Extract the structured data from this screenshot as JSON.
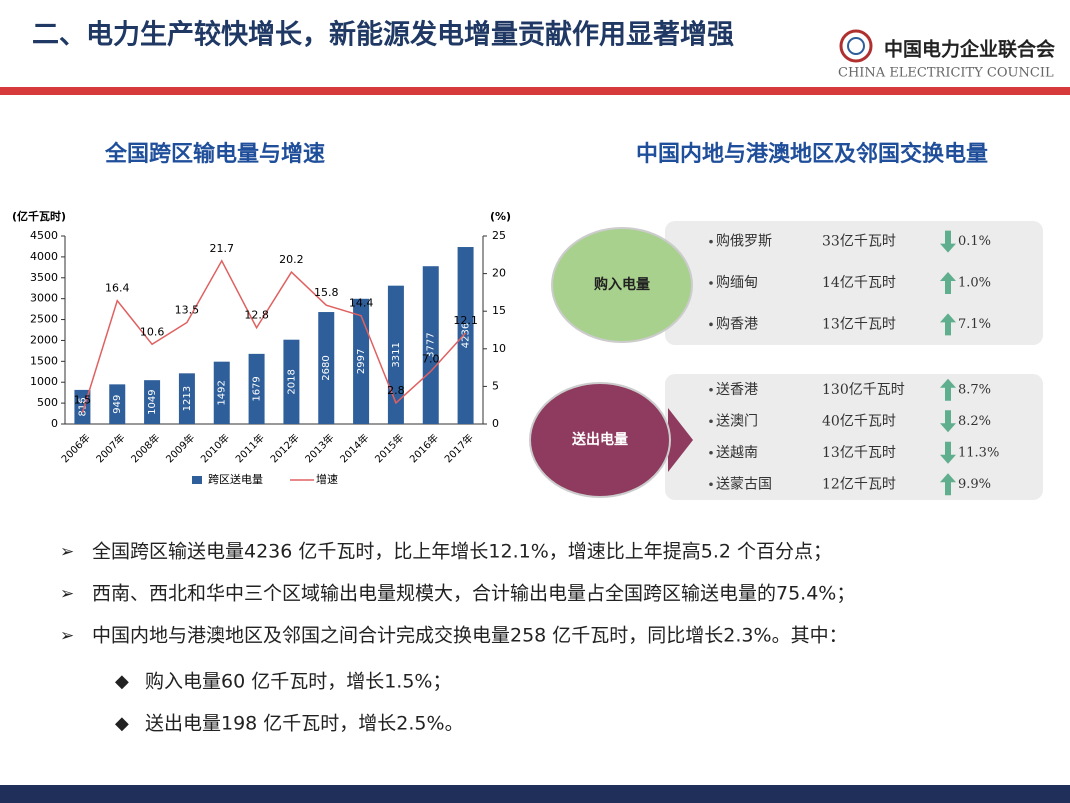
{
  "header": {
    "title": "二、电力生产较快增长，新能源发电增量贡献作用显著增强",
    "org_name": "中国电力企业联合会",
    "org_name_en": "CHINA ELECTRICITY COUNCIL"
  },
  "left_title": "全国跨区输电量与增速",
  "right_title": "中国内地与港澳地区及邻国交换电量",
  "chart_data": {
    "type": "bar",
    "y_label": "(亿千瓦时)",
    "y2_label": "(%)",
    "categories": [
      "2006年",
      "2007年",
      "2008年",
      "2009年",
      "2010年",
      "2011年",
      "2012年",
      "2013年",
      "2014年",
      "2015年",
      "2016年",
      "2017年"
    ],
    "series": [
      {
        "name": "跨区送电量",
        "type": "bar",
        "color": "#2f5f9a",
        "values": [
          816,
          949,
          1049,
          1213,
          1492,
          1679,
          2018,
          2680,
          2997,
          3311,
          3777,
          4236
        ]
      },
      {
        "name": "增速",
        "type": "line",
        "axis": "y2",
        "color": "#e06060",
        "values": [
          1.5,
          16.4,
          10.6,
          13.5,
          21.7,
          12.8,
          20.2,
          15.8,
          14.4,
          2.8,
          7.0,
          12.1
        ],
        "value_labels": [
          "1.5",
          "16.4",
          "10.6",
          "13.5",
          "21.7",
          "12.8",
          "20.2",
          "15.8",
          "14.4",
          "2.8",
          "7.0",
          "12.1"
        ]
      }
    ],
    "ylim": [
      0,
      4500
    ],
    "yticks": [
      0,
      500,
      1000,
      1500,
      2000,
      2500,
      3000,
      3500,
      4000,
      4500
    ],
    "y2lim": [
      0,
      25
    ],
    "y2ticks": [
      0,
      5,
      10,
      15,
      20,
      25
    ]
  },
  "exchange": [
    {
      "label": "购入电量",
      "color": "#a9d18e",
      "rows": [
        {
          "name": "购俄罗斯",
          "amount": "33亿千瓦时",
          "trend": "down",
          "pct": "0.1%"
        },
        {
          "name": "购缅甸",
          "amount": "14亿千瓦时",
          "trend": "up",
          "pct": "1.0%"
        },
        {
          "name": "购香港",
          "amount": "13亿千瓦时",
          "trend": "up",
          "pct": "7.1%"
        }
      ]
    },
    {
      "label": "送出电量",
      "color": "#8e3b5f",
      "rows": [
        {
          "name": "送香港",
          "amount": "130亿千瓦时",
          "trend": "up",
          "pct": "8.7%"
        },
        {
          "name": "送澳门",
          "amount": "40亿千瓦时",
          "trend": "down",
          "pct": "8.2%"
        },
        {
          "name": "送越南",
          "amount": "13亿千瓦时",
          "trend": "down",
          "pct": "11.3%"
        },
        {
          "name": "送蒙古国",
          "amount": "12亿千瓦时",
          "trend": "up",
          "pct": "9.9%"
        }
      ]
    }
  ],
  "bullets": [
    {
      "text": "全国跨区输送电量4236 亿千瓦时，比上年增长12.1%，增速比上年提高5.2 个百分点；",
      "level": 1
    },
    {
      "text": "西南、西北和华中三个区域输出电量规模大，合计输出电量占全国跨区输送电量的75.4%；",
      "level": 1
    },
    {
      "text": "中国内地与港澳地区及邻国之间合计完成交换电量258 亿千瓦时，同比增长2.3%。其中：",
      "level": 1
    },
    {
      "text": "购入电量60 亿千瓦时，增长1.5%；",
      "level": 2
    },
    {
      "text": "送出电量198 亿千瓦时，增长2.5%。",
      "level": 2
    }
  ]
}
